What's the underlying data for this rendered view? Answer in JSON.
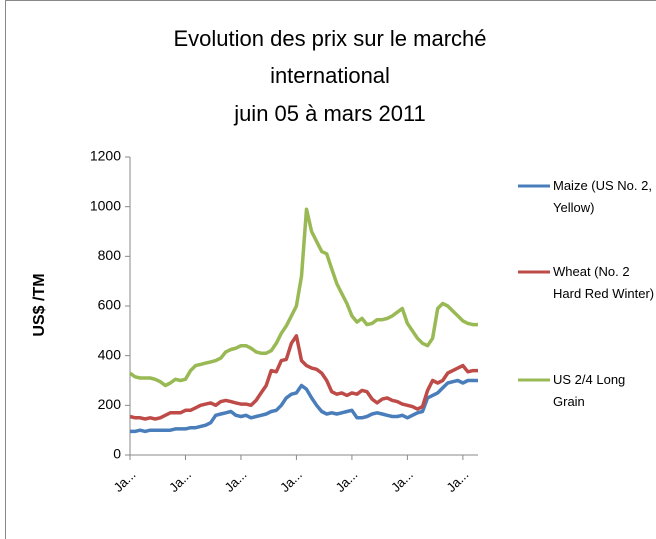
{
  "chart_data": {
    "type": "line",
    "title": [
      "Evolution des prix sur le marché",
      "international",
      "juin 05 à mars 2011"
    ],
    "y_label": "US$ /TM",
    "categories": [
      "Ja...",
      null,
      null,
      null,
      null,
      null,
      null,
      null,
      null,
      null,
      null,
      "Ja...",
      null,
      null,
      null,
      null,
      null,
      null,
      null,
      null,
      null,
      null,
      "Ja...",
      null,
      null,
      null,
      null,
      null,
      null,
      null,
      null,
      null,
      null,
      "Ja...",
      null,
      null,
      null,
      null,
      null,
      null,
      null,
      null,
      null,
      null,
      "Ja...",
      null,
      null,
      null,
      null,
      null,
      null,
      null,
      null,
      null,
      null,
      "Ja...",
      null,
      null,
      null,
      null,
      null,
      null,
      null,
      null,
      null,
      null,
      "Ja...",
      null,
      null,
      null
    ],
    "series": [
      {
        "name": "Maize (US No. 2, Yellow)",
        "color": "#4a7ebb",
        "values": [
          95,
          95,
          100,
          95,
          100,
          100,
          100,
          100,
          100,
          105,
          105,
          105,
          110,
          110,
          115,
          120,
          130,
          160,
          165,
          170,
          175,
          160,
          155,
          160,
          150,
          155,
          160,
          165,
          175,
          180,
          200,
          230,
          245,
          250,
          280,
          265,
          230,
          200,
          175,
          165,
          170,
          165,
          170,
          175,
          180,
          150,
          150,
          155,
          165,
          170,
          165,
          160,
          155,
          155,
          160,
          150,
          160,
          170,
          175,
          230,
          240,
          250,
          270,
          290,
          295,
          300,
          290,
          300,
          300,
          300
        ]
      },
      {
        "name": "Wheat (No. 2 Hard Red Winter)",
        "color": "#be4b48",
        "values": [
          155,
          150,
          150,
          145,
          150,
          145,
          150,
          160,
          170,
          170,
          170,
          180,
          180,
          190,
          200,
          205,
          210,
          200,
          215,
          220,
          215,
          210,
          205,
          205,
          200,
          220,
          250,
          280,
          340,
          335,
          380,
          385,
          450,
          480,
          380,
          360,
          350,
          345,
          330,
          300,
          255,
          245,
          250,
          240,
          250,
          245,
          260,
          255,
          225,
          210,
          225,
          230,
          220,
          215,
          205,
          200,
          195,
          185,
          195,
          260,
          300,
          290,
          300,
          330,
          340,
          350,
          360,
          335,
          340,
          340
        ]
      },
      {
        "name": "US 2/4 Long Grain",
        "color": "#98b954",
        "values": [
          330,
          315,
          310,
          310,
          310,
          305,
          295,
          280,
          290,
          305,
          300,
          305,
          340,
          360,
          365,
          370,
          375,
          380,
          390,
          415,
          425,
          430,
          440,
          440,
          430,
          415,
          410,
          410,
          420,
          450,
          490,
          520,
          560,
          600,
          720,
          990,
          900,
          860,
          820,
          810,
          750,
          690,
          650,
          610,
          560,
          535,
          550,
          525,
          530,
          545,
          545,
          550,
          560,
          575,
          590,
          530,
          500,
          470,
          450,
          440,
          470,
          590,
          610,
          600,
          580,
          560,
          540,
          530,
          525,
          525
        ]
      }
    ],
    "ylim": [
      0,
      1200
    ],
    "yticks": [
      0,
      200,
      400,
      600,
      800,
      1000,
      1200
    ],
    "grid": false
  }
}
